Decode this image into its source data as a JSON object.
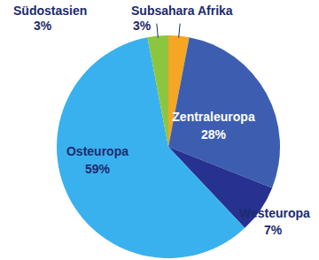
{
  "chart_data": {
    "type": "pie",
    "categories": [
      "Subsahara Afrika",
      "Zentraleuropa",
      "Westeuropa",
      "Osteuropa",
      "Südostasien"
    ],
    "values": [
      3,
      28,
      7,
      59,
      3
    ],
    "value_labels": [
      "3%",
      "28%",
      "7%",
      "59%",
      "3%"
    ],
    "colors": [
      "#f5a623",
      "#3d5eb0",
      "#27318f",
      "#39b1ef",
      "#8cc63f"
    ],
    "data_labels": true
  }
}
